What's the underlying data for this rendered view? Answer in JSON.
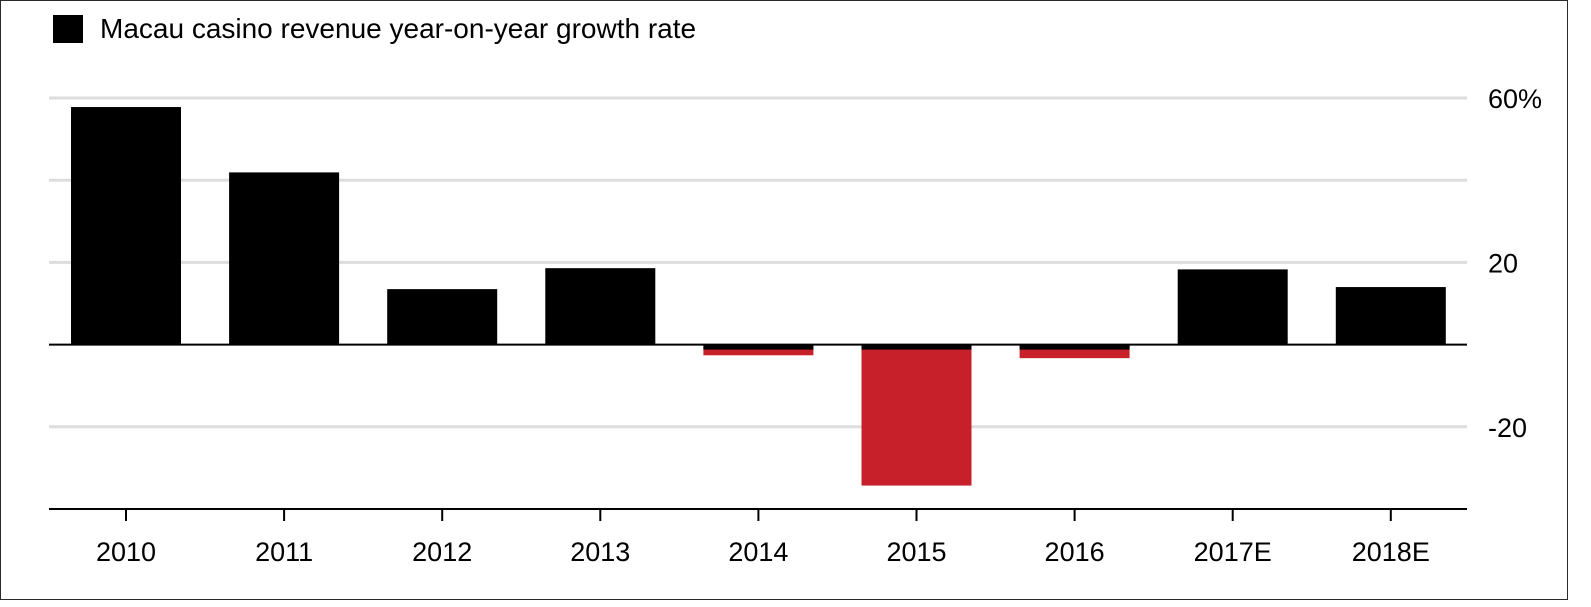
{
  "colors": {
    "positive": "#000000",
    "negative": "#c8202a",
    "grid": "#dddddd",
    "axis": "#000000"
  },
  "chart_data": {
    "type": "bar",
    "legend": {
      "label": "Macau casino revenue year-on-year growth rate",
      "placement": "top-left"
    },
    "categories": [
      "2010",
      "2011",
      "2012",
      "2013",
      "2014",
      "2015",
      "2016",
      "2017E",
      "2018E"
    ],
    "series": [
      {
        "name": "Macau casino revenue year-on-year growth rate",
        "values": [
          57.8,
          41.9,
          13.5,
          18.6,
          -2.6,
          -34.3,
          -3.3,
          18.3,
          14.0
        ]
      }
    ],
    "ylim": [
      -40,
      60
    ],
    "yticks": [
      60,
      40,
      20,
      0,
      -20,
      -40
    ],
    "ytick_labels": [
      {
        "value": 60,
        "label": "60%"
      },
      {
        "value": 20,
        "label": "20"
      },
      {
        "value": -20,
        "label": "-20"
      }
    ],
    "y_axis_position": "right",
    "grid": true
  }
}
